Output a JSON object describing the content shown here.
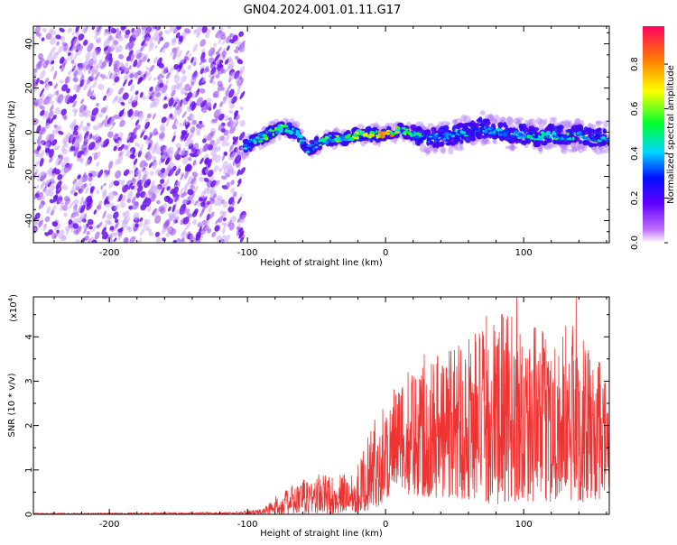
{
  "title": "GN04.2024.001.01.11.G17",
  "chart_data": [
    {
      "type": "heatmap",
      "xlabel": "Height of straight line (km)",
      "ylabel": "Frequency (Hz)",
      "xlim": [
        -255,
        162
      ],
      "ylim": [
        -50,
        48
      ],
      "x_ticks": [
        -200,
        -100,
        0,
        100
      ],
      "y_ticks": [
        -40,
        -20,
        0,
        20,
        40
      ],
      "colorbar": {
        "label": "Normalized spectral amplitude",
        "range": [
          0.0,
          0.97
        ],
        "ticks": [
          0.0,
          0.2,
          0.4,
          0.6,
          0.8
        ],
        "colormap": [
          "#ffffff",
          "#b040ff",
          "#2a00ff",
          "#00e0ff",
          "#00ff40",
          "#ffff00",
          "#ff8000",
          "#ff0060"
        ]
      },
      "noise_region": {
        "x": [
          -255,
          -103
        ],
        "frequency": [
          -50,
          48
        ]
      },
      "ridge": [
        {
          "x": -103,
          "f": -7,
          "amp": 0.45
        },
        {
          "x": -95,
          "f": -4,
          "amp": 0.5
        },
        {
          "x": -85,
          "f": -1,
          "amp": 0.6
        },
        {
          "x": -75,
          "f": 2,
          "amp": 0.65
        },
        {
          "x": -65,
          "f": 0,
          "amp": 0.5
        },
        {
          "x": -57,
          "f": -8,
          "amp": 0.45
        },
        {
          "x": -48,
          "f": -5,
          "amp": 0.55
        },
        {
          "x": -40,
          "f": -3,
          "amp": 0.6
        },
        {
          "x": -30,
          "f": -3,
          "amp": 0.65
        },
        {
          "x": -20,
          "f": -1,
          "amp": 0.75
        },
        {
          "x": -10,
          "f": -1,
          "amp": 0.8
        },
        {
          "x": 0,
          "f": -1,
          "amp": 0.95
        },
        {
          "x": 10,
          "f": 1,
          "amp": 0.7
        },
        {
          "x": 20,
          "f": -1,
          "amp": 0.55
        },
        {
          "x": 30,
          "f": -3,
          "amp": 0.45
        },
        {
          "x": 40,
          "f": -2,
          "amp": 0.4
        },
        {
          "x": 50,
          "f": -1,
          "amp": 0.45
        },
        {
          "x": 60,
          "f": 0,
          "amp": 0.45
        },
        {
          "x": 70,
          "f": 2,
          "amp": 0.45
        },
        {
          "x": 80,
          "f": 0,
          "amp": 0.45
        },
        {
          "x": 90,
          "f": -1,
          "amp": 0.45
        },
        {
          "x": 100,
          "f": -1,
          "amp": 0.5
        },
        {
          "x": 110,
          "f": -2,
          "amp": 0.5
        },
        {
          "x": 120,
          "f": -1,
          "amp": 0.5
        },
        {
          "x": 130,
          "f": -2,
          "amp": 0.55
        },
        {
          "x": 140,
          "f": -1,
          "amp": 0.5
        },
        {
          "x": 150,
          "f": -3,
          "amp": 0.5
        },
        {
          "x": 162,
          "f": -2,
          "amp": 0.45
        }
      ]
    },
    {
      "type": "line",
      "xlabel": "Height of straight line (km)",
      "ylabel": "SNR (10 * v/v)",
      "y_multiplier": "(x10",
      "y_multiplier_exp": "4",
      "y_multiplier_close": ")",
      "xlim": [
        -255,
        162
      ],
      "ylim": [
        0,
        4.9
      ],
      "x_ticks": [
        -200,
        -100,
        0,
        100
      ],
      "y_ticks": [
        0,
        1,
        2,
        3,
        4
      ],
      "line_color": "#ee3333",
      "envelope": [
        {
          "x": -255,
          "low": 0.0,
          "high": 0.03
        },
        {
          "x": -110,
          "low": 0.0,
          "high": 0.05
        },
        {
          "x": -90,
          "low": 0.0,
          "high": 0.12
        },
        {
          "x": -80,
          "low": 0.0,
          "high": 0.4
        },
        {
          "x": -65,
          "low": 0.0,
          "high": 0.7
        },
        {
          "x": -50,
          "low": 0.0,
          "high": 0.95
        },
        {
          "x": -35,
          "low": 0.02,
          "high": 0.85
        },
        {
          "x": -20,
          "low": 0.05,
          "high": 1.15
        },
        {
          "x": -10,
          "low": 0.1,
          "high": 2.0
        },
        {
          "x": 0,
          "low": 0.3,
          "high": 2.7
        },
        {
          "x": 10,
          "low": 0.5,
          "high": 2.9
        },
        {
          "x": 25,
          "low": 0.4,
          "high": 3.7
        },
        {
          "x": 45,
          "low": 0.35,
          "high": 3.9
        },
        {
          "x": 65,
          "low": 0.3,
          "high": 4.3
        },
        {
          "x": 80,
          "low": 0.2,
          "high": 4.6
        },
        {
          "x": 95,
          "low": 0.3,
          "high": 4.5
        },
        {
          "x": 115,
          "low": 0.3,
          "high": 4.1
        },
        {
          "x": 135,
          "low": 0.25,
          "high": 4.4
        },
        {
          "x": 150,
          "low": 0.3,
          "high": 3.6
        },
        {
          "x": 162,
          "low": 0.3,
          "high": 3.2
        }
      ],
      "peaks": [
        {
          "x": 95,
          "y": 4.9
        },
        {
          "x": 138,
          "y": 4.9
        },
        {
          "x": 84,
          "y": 4.5
        },
        {
          "x": 28,
          "y": 3.6
        }
      ]
    }
  ]
}
